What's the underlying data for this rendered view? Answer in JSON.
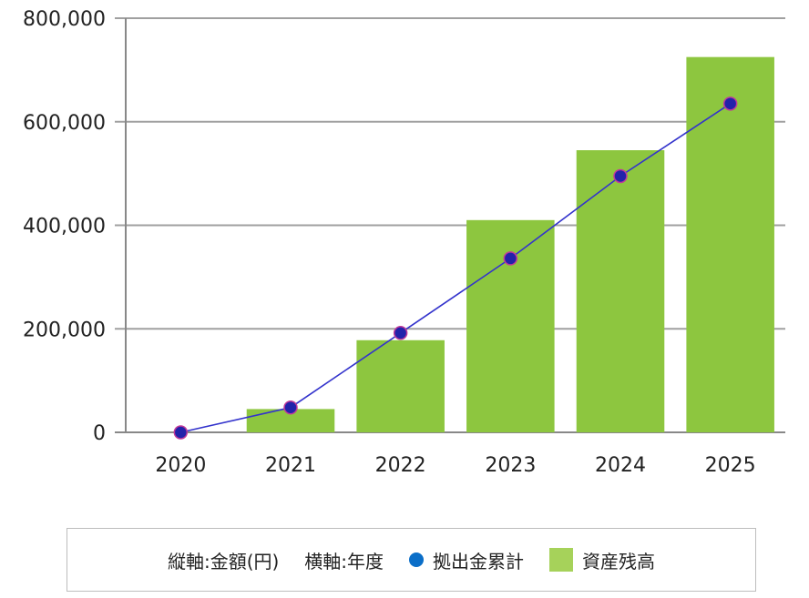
{
  "chart_data": {
    "type": "bar",
    "categories": [
      "2020",
      "2021",
      "2022",
      "2023",
      "2024",
      "2025"
    ],
    "ylim": [
      0,
      800000
    ],
    "yticks": [
      0,
      200000,
      400000,
      600000,
      800000
    ],
    "ytick_labels": [
      "0",
      "200,000",
      "400,000",
      "600,000",
      "800,000"
    ],
    "grid": true,
    "legend_position": "bottom",
    "series": [
      {
        "name": "資産残高",
        "type": "bar",
        "color": "#8dc63f",
        "values": [
          0,
          45000,
          178000,
          410000,
          545000,
          725000
        ]
      },
      {
        "name": "拠出金累計",
        "type": "line",
        "color": "#3333cc",
        "marker_color": "#2222aa",
        "values": [
          0,
          48000,
          192000,
          336000,
          495000,
          635000
        ]
      }
    ]
  },
  "legend": {
    "vertical_axis": "縦軸:金額(円)",
    "horizontal_axis": "横軸:年度",
    "line_label": "拠出金累計",
    "bar_label": "資産残高",
    "line_legend_color": "#0a6ec8",
    "bar_legend_color": "#a6d25a"
  }
}
